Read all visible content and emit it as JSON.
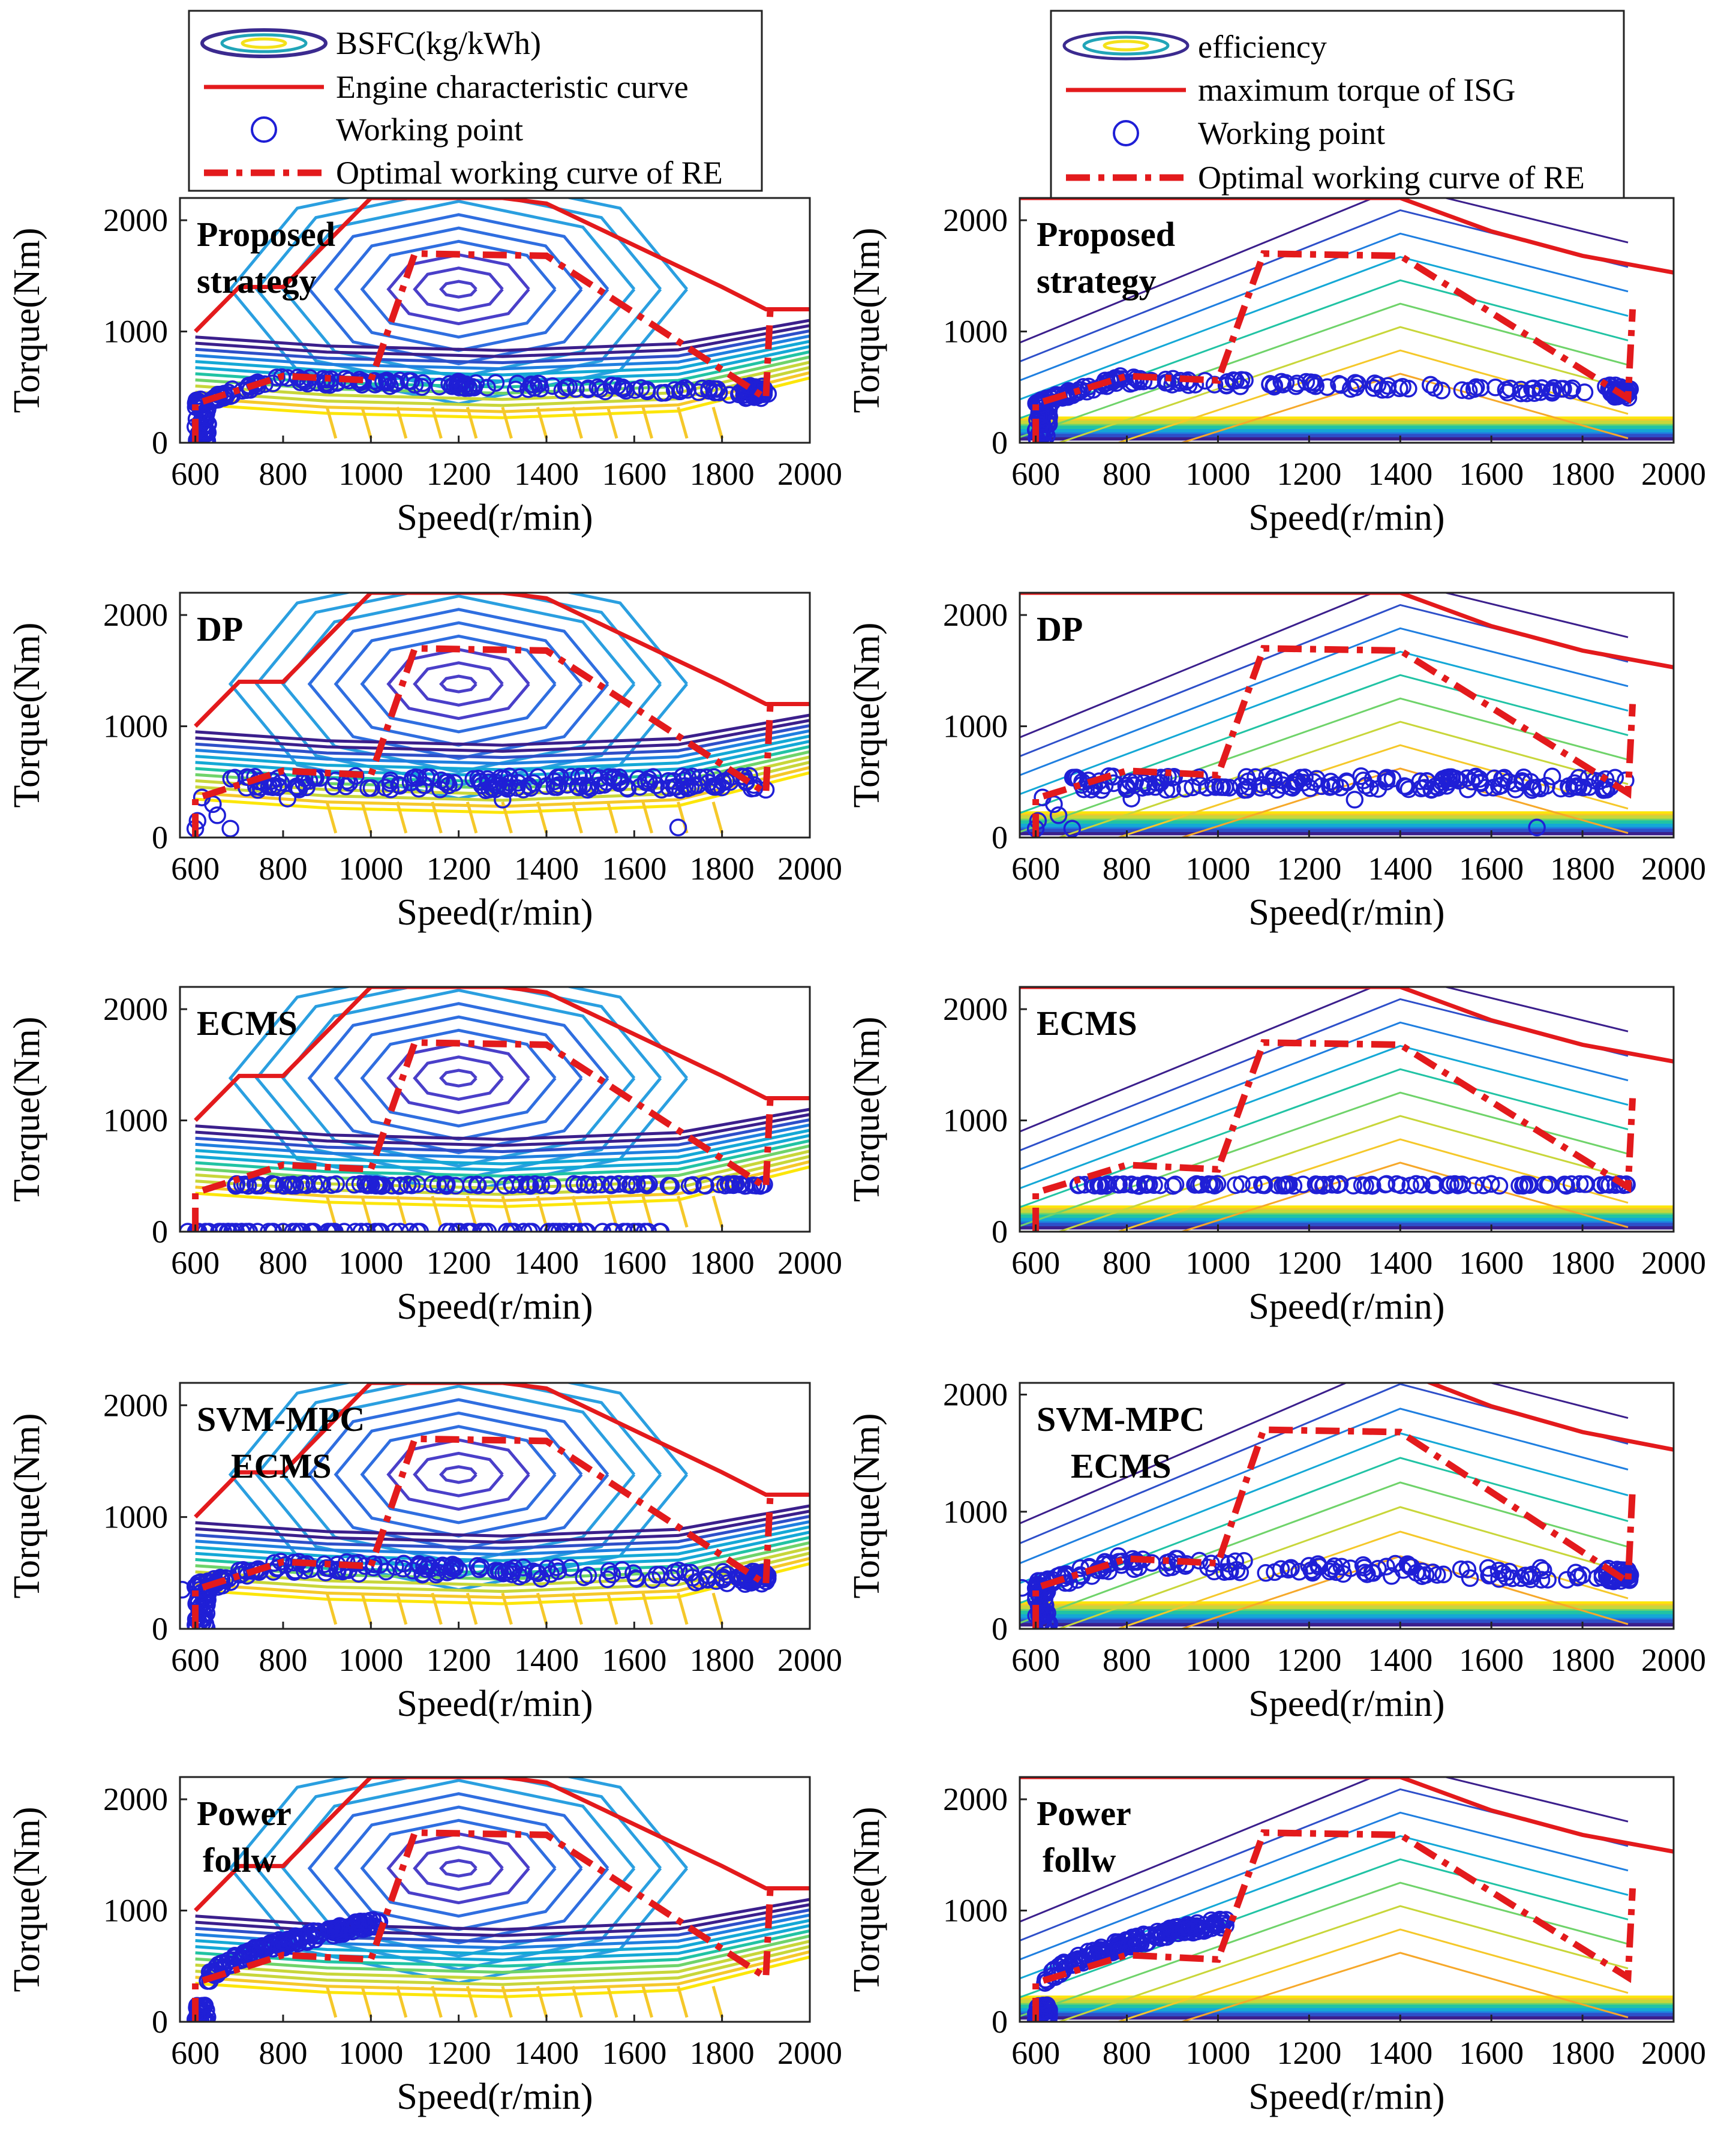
{
  "figure_type": "engine and ISG working-point comparison",
  "legends": {
    "left": {
      "items": [
        {
          "kind": "contour",
          "label": "BSFC(kg/kWh)"
        },
        {
          "kind": "line",
          "label": "Engine characteristic curve",
          "color": "#e31a1c"
        },
        {
          "kind": "marker",
          "label": "Working point",
          "color": "#1f1fd6"
        },
        {
          "kind": "dashdot",
          "label": "Optimal working curve of RE",
          "color": "#e31a1c"
        }
      ]
    },
    "right": {
      "items": [
        {
          "kind": "contour",
          "label": "efficiency"
        },
        {
          "kind": "line",
          "label": "maximum torque of ISG",
          "color": "#e31a1c"
        },
        {
          "kind": "marker",
          "label": "Working point",
          "color": "#1f1fd6"
        },
        {
          "kind": "dashdot",
          "label": "Optimal working curve of RE",
          "color": "#e31a1c"
        }
      ]
    }
  },
  "colors": {
    "limit_line": "#e31a1c",
    "optimal_curve": "#e31a1c",
    "points": "#1f1fd6",
    "contour_scale": [
      "#3b1f8c",
      "#2e4fc9",
      "#1f7fe0",
      "#14a8d6",
      "#21c3a4",
      "#6fd36a",
      "#c8d63a",
      "#f5c82a",
      "#fce60a"
    ]
  },
  "chart_data": [
    {
      "type": "scatter",
      "panel": "engine",
      "strategy": [
        "Proposed",
        "strategy"
      ],
      "xlabel": "Speed(r/min)",
      "ylabel": "Torque(Nm)",
      "xlim": [
        565,
        2000
      ],
      "ylim": [
        0,
        2200
      ],
      "xticks": [
        "600",
        "800",
        "1000",
        "1200",
        "1400",
        "1600",
        "1800",
        "2000"
      ],
      "yticks": [
        "0",
        "1000",
        "2000"
      ],
      "limit_curve": [
        [
          600,
          1000
        ],
        [
          700,
          1400
        ],
        [
          800,
          1400
        ],
        [
          900,
          1800
        ],
        [
          1000,
          2200
        ],
        [
          1300,
          2200
        ],
        [
          1400,
          2150
        ],
        [
          1800,
          1400
        ],
        [
          1900,
          1200
        ],
        [
          2000,
          1200
        ]
      ],
      "optimal_curve": [
        [
          600,
          0
        ],
        [
          600,
          350
        ],
        [
          800,
          600
        ],
        [
          1000,
          560
        ],
        [
          1100,
          1700
        ],
        [
          1400,
          1680
        ],
        [
          1900,
          400
        ],
        [
          1910,
          1200
        ]
      ],
      "pattern": "proposed"
    },
    {
      "type": "scatter",
      "panel": "isg",
      "strategy": [
        "Proposed",
        "strategy"
      ],
      "xlabel": "Speed(r/min)",
      "ylabel": "Torque(Nm)",
      "xlim": [
        565,
        2000
      ],
      "ylim": [
        0,
        2200
      ],
      "xticks": [
        "600",
        "800",
        "1000",
        "1200",
        "1400",
        "1600",
        "1800",
        "2000"
      ],
      "yticks": [
        "0",
        "1000",
        "2000"
      ],
      "limit_curve": [
        [
          565,
          2200
        ],
        [
          1400,
          2200
        ],
        [
          1600,
          1900
        ],
        [
          1800,
          1680
        ],
        [
          2000,
          1530
        ]
      ],
      "optimal_curve": [
        [
          600,
          0
        ],
        [
          600,
          350
        ],
        [
          800,
          600
        ],
        [
          1000,
          560
        ],
        [
          1100,
          1700
        ],
        [
          1400,
          1680
        ],
        [
          1900,
          400
        ],
        [
          1910,
          1200
        ]
      ],
      "pattern": "proposed"
    },
    {
      "type": "scatter",
      "panel": "engine",
      "strategy": [
        "DP"
      ],
      "xlabel": "Speed(r/min)",
      "ylabel": "Torque(Nm)",
      "xlim": [
        565,
        2000
      ],
      "ylim": [
        0,
        2200
      ],
      "xticks": [
        "600",
        "800",
        "1000",
        "1200",
        "1400",
        "1600",
        "1800",
        "2000"
      ],
      "yticks": [
        "0",
        "1000",
        "2000"
      ],
      "limit_curve": [
        [
          600,
          1000
        ],
        [
          700,
          1400
        ],
        [
          800,
          1400
        ],
        [
          900,
          1800
        ],
        [
          1000,
          2200
        ],
        [
          1300,
          2200
        ],
        [
          1400,
          2150
        ],
        [
          1800,
          1400
        ],
        [
          1900,
          1200
        ],
        [
          2000,
          1200
        ]
      ],
      "optimal_curve": [
        [
          600,
          0
        ],
        [
          600,
          350
        ],
        [
          800,
          600
        ],
        [
          1000,
          560
        ],
        [
          1100,
          1700
        ],
        [
          1400,
          1680
        ],
        [
          1900,
          400
        ],
        [
          1910,
          1200
        ]
      ],
      "pattern": "dp"
    },
    {
      "type": "scatter",
      "panel": "isg",
      "strategy": [
        "DP"
      ],
      "xlabel": "Speed(r/min)",
      "ylabel": "Torque(Nm)",
      "xlim": [
        565,
        2000
      ],
      "ylim": [
        0,
        2200
      ],
      "xticks": [
        "600",
        "800",
        "1000",
        "1200",
        "1400",
        "1600",
        "1800",
        "2000"
      ],
      "yticks": [
        "0",
        "1000",
        "2000"
      ],
      "limit_curve": [
        [
          565,
          2200
        ],
        [
          1400,
          2200
        ],
        [
          1600,
          1900
        ],
        [
          1800,
          1680
        ],
        [
          2000,
          1530
        ]
      ],
      "optimal_curve": [
        [
          600,
          0
        ],
        [
          600,
          350
        ],
        [
          800,
          600
        ],
        [
          1000,
          560
        ],
        [
          1100,
          1700
        ],
        [
          1400,
          1680
        ],
        [
          1900,
          400
        ],
        [
          1910,
          1200
        ]
      ],
      "pattern": "dp"
    },
    {
      "type": "scatter",
      "panel": "engine",
      "strategy": [
        "ECMS"
      ],
      "xlabel": "Speed(r/min)",
      "ylabel": "Torque(Nm)",
      "xlim": [
        565,
        2000
      ],
      "ylim": [
        0,
        2200
      ],
      "xticks": [
        "600",
        "800",
        "1000",
        "1200",
        "1400",
        "1600",
        "1800",
        "2000"
      ],
      "yticks": [
        "0",
        "1000",
        "2000"
      ],
      "limit_curve": [
        [
          600,
          1000
        ],
        [
          700,
          1400
        ],
        [
          800,
          1400
        ],
        [
          900,
          1800
        ],
        [
          1000,
          2200
        ],
        [
          1300,
          2200
        ],
        [
          1400,
          2150
        ],
        [
          1800,
          1400
        ],
        [
          1900,
          1200
        ],
        [
          2000,
          1200
        ]
      ],
      "optimal_curve": [
        [
          600,
          0
        ],
        [
          600,
          350
        ],
        [
          800,
          600
        ],
        [
          1000,
          560
        ],
        [
          1100,
          1700
        ],
        [
          1400,
          1680
        ],
        [
          1900,
          400
        ],
        [
          1910,
          1200
        ]
      ],
      "pattern": "ecms"
    },
    {
      "type": "scatter",
      "panel": "isg",
      "strategy": [
        "ECMS"
      ],
      "xlabel": "Speed(r/min)",
      "ylabel": "Torque(Nm)",
      "xlim": [
        565,
        2000
      ],
      "ylim": [
        0,
        2200
      ],
      "xticks": [
        "600",
        "800",
        "1000",
        "1200",
        "1400",
        "1600",
        "1800",
        "2000"
      ],
      "yticks": [
        "0",
        "1000",
        "2000"
      ],
      "limit_curve": [
        [
          565,
          2200
        ],
        [
          1400,
          2200
        ],
        [
          1600,
          1900
        ],
        [
          1800,
          1680
        ],
        [
          2000,
          1530
        ]
      ],
      "optimal_curve": [
        [
          600,
          0
        ],
        [
          600,
          350
        ],
        [
          800,
          600
        ],
        [
          1000,
          560
        ],
        [
          1100,
          1700
        ],
        [
          1400,
          1680
        ],
        [
          1900,
          400
        ],
        [
          1910,
          1200
        ]
      ],
      "pattern": "ecms-isg"
    },
    {
      "type": "scatter",
      "panel": "engine",
      "strategy": [
        "SVM-MPC",
        "ECMS"
      ],
      "xlabel": "Speed(r/min)",
      "ylabel": "Torque(Nm)",
      "xlim": [
        565,
        2000
      ],
      "ylim": [
        0,
        2200
      ],
      "xticks": [
        "600",
        "800",
        "1000",
        "1200",
        "1400",
        "1600",
        "1800",
        "2000"
      ],
      "yticks": [
        "0",
        "1000",
        "2000"
      ],
      "limit_curve": [
        [
          600,
          1000
        ],
        [
          700,
          1400
        ],
        [
          800,
          1400
        ],
        [
          900,
          1800
        ],
        [
          1000,
          2200
        ],
        [
          1300,
          2200
        ],
        [
          1400,
          2150
        ],
        [
          1800,
          1400
        ],
        [
          1900,
          1200
        ],
        [
          2000,
          1200
        ]
      ],
      "optimal_curve": [
        [
          600,
          0
        ],
        [
          600,
          350
        ],
        [
          800,
          600
        ],
        [
          1000,
          560
        ],
        [
          1100,
          1700
        ],
        [
          1400,
          1680
        ],
        [
          1900,
          400
        ],
        [
          1910,
          1200
        ]
      ],
      "pattern": "svm"
    },
    {
      "type": "scatter",
      "panel": "isg",
      "strategy": [
        "SVM-MPC",
        "ECMS"
      ],
      "xlabel": "Speed(r/min)",
      "ylabel": "Torque(Nm)",
      "xlim": [
        565,
        2000
      ],
      "ylim": [
        0,
        2100
      ],
      "xticks": [
        "600",
        "800",
        "1000",
        "1200",
        "1400",
        "1600",
        "1800",
        "2000"
      ],
      "yticks": [
        "0",
        "1000",
        "2000"
      ],
      "limit_curve": [
        [
          565,
          2200
        ],
        [
          1400,
          2200
        ],
        [
          1600,
          1900
        ],
        [
          1800,
          1680
        ],
        [
          2000,
          1530
        ]
      ],
      "optimal_curve": [
        [
          600,
          0
        ],
        [
          600,
          350
        ],
        [
          800,
          600
        ],
        [
          1000,
          560
        ],
        [
          1100,
          1700
        ],
        [
          1400,
          1680
        ],
        [
          1900,
          400
        ],
        [
          1910,
          1200
        ]
      ],
      "pattern": "svm"
    },
    {
      "type": "scatter",
      "panel": "engine",
      "strategy": [
        "Power",
        "follw"
      ],
      "xlabel": "Speed(r/min)",
      "ylabel": "Torque(Nm)",
      "xlim": [
        565,
        2000
      ],
      "ylim": [
        0,
        2200
      ],
      "xticks": [
        "600",
        "800",
        "1000",
        "1200",
        "1400",
        "1600",
        "1800",
        "2000"
      ],
      "yticks": [
        "0",
        "1000",
        "2000"
      ],
      "limit_curve": [
        [
          600,
          1000
        ],
        [
          700,
          1400
        ],
        [
          800,
          1400
        ],
        [
          900,
          1800
        ],
        [
          1000,
          2200
        ],
        [
          1300,
          2200
        ],
        [
          1400,
          2150
        ],
        [
          1800,
          1400
        ],
        [
          1900,
          1200
        ],
        [
          2000,
          1200
        ]
      ],
      "optimal_curve": [
        [
          600,
          0
        ],
        [
          600,
          350
        ],
        [
          800,
          600
        ],
        [
          1000,
          560
        ],
        [
          1100,
          1700
        ],
        [
          1400,
          1680
        ],
        [
          1900,
          400
        ],
        [
          1910,
          1200
        ]
      ],
      "pattern": "power"
    },
    {
      "type": "scatter",
      "panel": "isg",
      "strategy": [
        "Power",
        "follw"
      ],
      "xlabel": "Speed(r/min)",
      "ylabel": "Torque(Nm)",
      "xlim": [
        565,
        2000
      ],
      "ylim": [
        0,
        2200
      ],
      "xticks": [
        "600",
        "800",
        "1000",
        "1200",
        "1400",
        "1600",
        "1800",
        "2000"
      ],
      "yticks": [
        "0",
        "1000",
        "2000"
      ],
      "limit_curve": [
        [
          565,
          2200
        ],
        [
          1400,
          2200
        ],
        [
          1600,
          1900
        ],
        [
          1800,
          1680
        ],
        [
          2000,
          1530
        ]
      ],
      "optimal_curve": [
        [
          600,
          0
        ],
        [
          600,
          350
        ],
        [
          800,
          600
        ],
        [
          1000,
          560
        ],
        [
          1100,
          1700
        ],
        [
          1400,
          1680
        ],
        [
          1900,
          400
        ],
        [
          1910,
          1200
        ]
      ],
      "pattern": "power"
    }
  ]
}
